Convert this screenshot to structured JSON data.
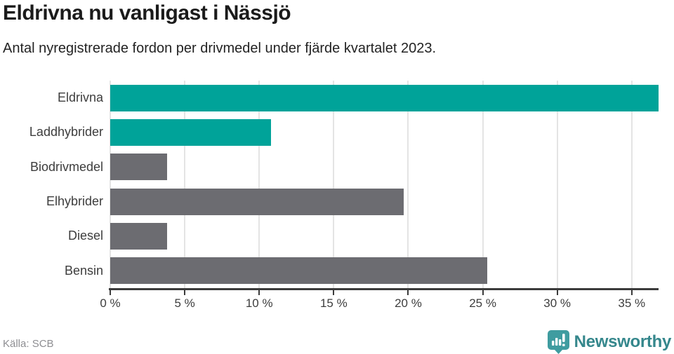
{
  "title": "Eldrivna nu vanligast i Nässjö",
  "subtitle": "Antal nyregistrerade fordon per drivmedel under fjärde kvartalet 2023.",
  "source": "Källa: SCB",
  "brand": {
    "name": "Newsworthy",
    "icon": "bar-chart-pin-icon",
    "icon_color": "#3f9ca0",
    "text_color": "#35878c"
  },
  "colors": {
    "highlight_bar": "#00a399",
    "neutral_bar": "#6c6c71",
    "gridline": "#e4e4e4",
    "axis": "#3b3b3b",
    "title_text": "#1b1b1b",
    "label_text": "#3d3d3d",
    "source_text": "#8e8e92"
  },
  "chart_data": {
    "type": "bar",
    "orientation": "horizontal",
    "title": "Eldrivna nu vanligast i Nässjö",
    "subtitle": "Antal nyregistrerade fordon per drivmedel under fjärde kvartalet 2023.",
    "categories": [
      "Eldrivna",
      "Laddhybrider",
      "Biodrivmedel",
      "Elhybrider",
      "Diesel",
      "Bensin"
    ],
    "values": [
      36.8,
      10.8,
      3.8,
      19.7,
      3.8,
      25.3
    ],
    "unit": "%",
    "bar_colors": [
      "#00a399",
      "#00a399",
      "#6c6c71",
      "#6c6c71",
      "#6c6c71",
      "#6c6c71"
    ],
    "xlabel": "",
    "ylabel": "",
    "xlim": [
      0,
      36.8
    ],
    "x_ticks": [
      0,
      5,
      10,
      15,
      20,
      25,
      30,
      35
    ],
    "x_tick_labels": [
      "0 %",
      "5 %",
      "10 %",
      "15 %",
      "20 %",
      "25 %",
      "30 %",
      "35 %"
    ],
    "grid": "vertical",
    "legend": "none"
  }
}
